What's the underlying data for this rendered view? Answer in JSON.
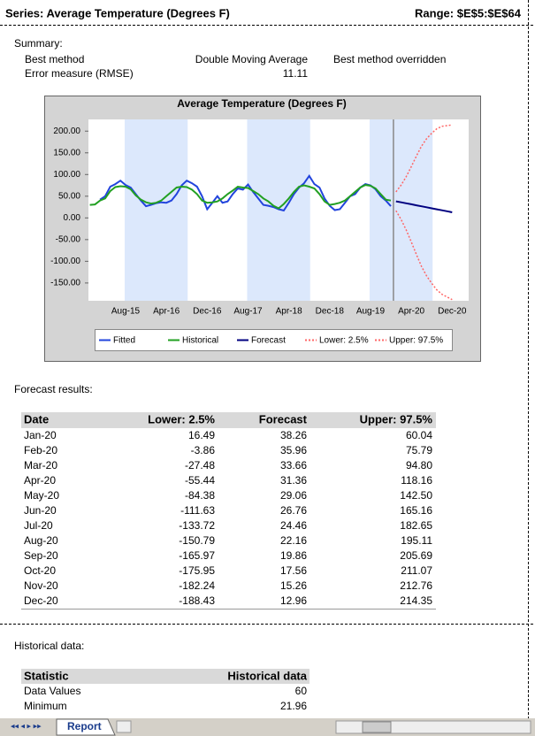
{
  "header": {
    "series": "Series: Average Temperature (Degrees F)",
    "range": "Range: $E$5:$E$64"
  },
  "summary": {
    "title": "Summary:",
    "rows": [
      [
        "Best method",
        "Double Moving Average",
        "Best method overridden"
      ],
      [
        "Error measure (RMSE)",
        "11.11"
      ]
    ]
  },
  "chart_data": {
    "type": "line",
    "title": "Average Temperature (Degrees F)",
    "categories": [
      null,
      null,
      null,
      null,
      null,
      null,
      null,
      "Aug-15",
      null,
      null,
      null,
      null,
      null,
      null,
      null,
      "Apr-16",
      null,
      null,
      null,
      null,
      null,
      null,
      null,
      "Dec-16",
      null,
      null,
      null,
      null,
      null,
      null,
      null,
      "Aug-17",
      null,
      null,
      null,
      null,
      null,
      null,
      null,
      "Apr-18",
      null,
      null,
      null,
      null,
      null,
      null,
      null,
      "Dec-18",
      null,
      null,
      null,
      null,
      null,
      null,
      null,
      "Aug-19",
      null,
      null,
      null,
      null,
      null,
      null,
      null,
      "Apr-20",
      null,
      null,
      null,
      null,
      null,
      null,
      null,
      "Dec-20"
    ],
    "ylim": [
      -191,
      227
    ],
    "yticks": [
      {
        "value": 200,
        "label": "200.00"
      },
      {
        "value": 150,
        "label": "150.00"
      },
      {
        "value": 100,
        "label": "100.00"
      },
      {
        "value": 50,
        "label": "50.00"
      },
      {
        "value": 0,
        "label": "0.00"
      },
      {
        "value": -50,
        "label": "-50.00"
      },
      {
        "value": -100,
        "label": "-100.00"
      },
      {
        "value": -150,
        "label": "-150.00"
      }
    ],
    "series": [
      {
        "name": "Fitted",
        "color": "#2244dd",
        "style": "solid",
        "values": [
          null,
          null,
          42,
          50,
          72,
          78,
          86,
          76,
          70,
          55,
          40,
          27,
          30,
          34,
          36,
          35,
          40,
          55,
          75,
          86,
          80,
          72,
          50,
          20,
          35,
          50,
          35,
          38,
          55,
          68,
          65,
          77,
          60,
          45,
          30,
          28,
          25,
          20,
          17,
          35,
          55,
          70,
          80,
          97,
          78,
          70,
          45,
          28,
          18,
          20,
          35,
          50,
          55,
          70,
          78,
          75,
          66,
          50,
          40,
          27,
          null,
          null,
          null,
          null,
          null,
          null,
          null,
          null,
          null,
          null,
          null,
          null
        ]
      },
      {
        "name": "Historical",
        "color": "#22a022",
        "style": "solid",
        "values": [
          30,
          31,
          40,
          45,
          62,
          71,
          73,
          72,
          66,
          52,
          42,
          36,
          33,
          35,
          40,
          50,
          60,
          70,
          72,
          71,
          65,
          55,
          40,
          35,
          36,
          38,
          45,
          55,
          63,
          72,
          70,
          69,
          62,
          55,
          45,
          38,
          28,
          22,
          32,
          45,
          60,
          72,
          75,
          72,
          68,
          55,
          38,
          30,
          32,
          35,
          40,
          50,
          60,
          70,
          76,
          74,
          68,
          55,
          42,
          40,
          null,
          null,
          null,
          null,
          null,
          null,
          null,
          null,
          null,
          null,
          null,
          null
        ]
      },
      {
        "name": "Forecast",
        "color": "#000080",
        "style": "solid",
        "values": [
          null,
          null,
          null,
          null,
          null,
          null,
          null,
          null,
          null,
          null,
          null,
          null,
          null,
          null,
          null,
          null,
          null,
          null,
          null,
          null,
          null,
          null,
          null,
          null,
          null,
          null,
          null,
          null,
          null,
          null,
          null,
          null,
          null,
          null,
          null,
          null,
          null,
          null,
          null,
          null,
          null,
          null,
          null,
          null,
          null,
          null,
          null,
          null,
          null,
          null,
          null,
          null,
          null,
          null,
          null,
          null,
          null,
          null,
          null,
          null,
          38.26,
          35.96,
          33.66,
          31.36,
          29.06,
          26.76,
          24.46,
          22.16,
          19.86,
          17.56,
          15.26,
          12.96
        ]
      },
      {
        "name": "Lower: 2.5%",
        "color": "#ff6666",
        "style": "dotted",
        "values": [
          null,
          null,
          null,
          null,
          null,
          null,
          null,
          null,
          null,
          null,
          null,
          null,
          null,
          null,
          null,
          null,
          null,
          null,
          null,
          null,
          null,
          null,
          null,
          null,
          null,
          null,
          null,
          null,
          null,
          null,
          null,
          null,
          null,
          null,
          null,
          null,
          null,
          null,
          null,
          null,
          null,
          null,
          null,
          null,
          null,
          null,
          null,
          null,
          null,
          null,
          null,
          null,
          null,
          null,
          null,
          null,
          null,
          null,
          null,
          null,
          16.49,
          -3.86,
          -27.48,
          -55.44,
          -84.38,
          -111.63,
          -133.72,
          -150.79,
          -165.97,
          -175.95,
          -182.24,
          -188.43
        ]
      },
      {
        "name": "Upper: 97.5%",
        "color": "#ff6666",
        "style": "dotted",
        "values": [
          null,
          null,
          null,
          null,
          null,
          null,
          null,
          null,
          null,
          null,
          null,
          null,
          null,
          null,
          null,
          null,
          null,
          null,
          null,
          null,
          null,
          null,
          null,
          null,
          null,
          null,
          null,
          null,
          null,
          null,
          null,
          null,
          null,
          null,
          null,
          null,
          null,
          null,
          null,
          null,
          null,
          null,
          null,
          null,
          null,
          null,
          null,
          null,
          null,
          null,
          null,
          null,
          null,
          null,
          null,
          null,
          null,
          null,
          null,
          null,
          60.04,
          75.79,
          94.8,
          118.16,
          142.5,
          165.16,
          182.65,
          195.11,
          205.69,
          211.07,
          212.76,
          214.35
        ]
      }
    ]
  },
  "forecast_table": {
    "title": "Forecast results:",
    "columns": [
      "Date",
      "Lower: 2.5%",
      "Forecast",
      "Upper: 97.5%"
    ],
    "rows": [
      [
        "Jan-20",
        "16.49",
        "38.26",
        "60.04"
      ],
      [
        "Feb-20",
        "-3.86",
        "35.96",
        "75.79"
      ],
      [
        "Mar-20",
        "-27.48",
        "33.66",
        "94.80"
      ],
      [
        "Apr-20",
        "-55.44",
        "31.36",
        "118.16"
      ],
      [
        "May-20",
        "-84.38",
        "29.06",
        "142.50"
      ],
      [
        "Jun-20",
        "-111.63",
        "26.76",
        "165.16"
      ],
      [
        "Jul-20",
        "-133.72",
        "24.46",
        "182.65"
      ],
      [
        "Aug-20",
        "-150.79",
        "22.16",
        "195.11"
      ],
      [
        "Sep-20",
        "-165.97",
        "19.86",
        "205.69"
      ],
      [
        "Oct-20",
        "-175.95",
        "17.56",
        "211.07"
      ],
      [
        "Nov-20",
        "-182.24",
        "15.26",
        "212.76"
      ],
      [
        "Dec-20",
        "-188.43",
        "12.96",
        "214.35"
      ]
    ]
  },
  "historical_table": {
    "title": "Historical data:",
    "columns": [
      "Statistic",
      "Historical data"
    ],
    "rows": [
      [
        "Data Values",
        "60"
      ],
      [
        "Minimum",
        "21.96"
      ]
    ]
  },
  "sheet_tab": "Report"
}
